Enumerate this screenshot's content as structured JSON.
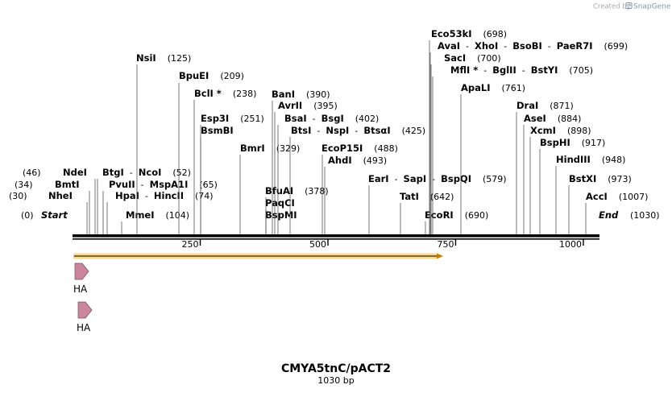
{
  "credit": {
    "prefix": "Created by",
    "brand": "SnapGene"
  },
  "map": {
    "title": "CMYA5tnC/pACT2",
    "length_label": "1030 bp",
    "length": 1030,
    "start_label": "Start",
    "start_pos": "(0)",
    "end_label": "End",
    "end_pos": "(1030)",
    "ticks": [
      250,
      500,
      750,
      1000
    ]
  },
  "sites": [
    {
      "parts": [
        "NsiI"
      ],
      "pos": "(125)",
      "bp": 125
    },
    {
      "parts": [
        "BpuEI"
      ],
      "pos": "(209)",
      "bp": 209
    },
    {
      "parts": [
        "BclI *"
      ],
      "pos": "(238)",
      "bp": 238
    },
    {
      "parts": [
        "Esp3I"
      ],
      "pos": "(251)",
      "bp": 251
    },
    {
      "parts": [
        "BsmBI"
      ],
      "pos": "",
      "bp": 251
    },
    {
      "parts": [
        "BmrI"
      ],
      "pos": "(329)",
      "bp": 329
    },
    {
      "parts": [
        "BanI"
      ],
      "pos": "(390)",
      "bp": 390
    },
    {
      "parts": [
        "AvrII"
      ],
      "pos": "(395)",
      "bp": 395
    },
    {
      "parts": [
        "BsaI",
        "BsgI"
      ],
      "pos": "(402)",
      "bp": 402
    },
    {
      "parts": [
        "BtsI",
        "NspI",
        "BtsαI"
      ],
      "pos": "(425)",
      "bp": 425
    },
    {
      "parts": [
        "EcoP15I"
      ],
      "pos": "(488)",
      "bp": 488
    },
    {
      "parts": [
        "AhdI"
      ],
      "pos": "(493)",
      "bp": 493
    },
    {
      "parts": [
        "BfuAI"
      ],
      "pos": "(378)",
      "bp": 378
    },
    {
      "parts": [
        "PaqCI"
      ],
      "pos": "",
      "bp": 378
    },
    {
      "parts": [
        "BspMI"
      ],
      "pos": "",
      "bp": 378
    },
    {
      "parts": [
        "NdeI"
      ],
      "pos": "(46)",
      "bp": 46
    },
    {
      "parts": [
        "BmtI"
      ],
      "pos": "(34)",
      "bp": 34
    },
    {
      "parts": [
        "NheI"
      ],
      "pos": "(30)",
      "bp": 30
    },
    {
      "parts": [
        "BtgI",
        "NcoI"
      ],
      "pos": "(52)",
      "bp": 52
    },
    {
      "parts": [
        "PvuII",
        "MspA1I"
      ],
      "pos": "(65)",
      "bp": 65
    },
    {
      "parts": [
        "HpaI",
        "HincII"
      ],
      "pos": "(74)",
      "bp": 74
    },
    {
      "parts": [
        "MmeI"
      ],
      "pos": "(104)",
      "bp": 104
    },
    {
      "parts": [
        "EarI",
        "SapI",
        "BspQI"
      ],
      "pos": "(579)",
      "bp": 579
    },
    {
      "parts": [
        "TatI"
      ],
      "pos": "(642)",
      "bp": 642
    },
    {
      "parts": [
        "EcoRI"
      ],
      "pos": "(690)",
      "bp": 690
    },
    {
      "parts": [
        "Eco53kI"
      ],
      "pos": "(698)",
      "bp": 698
    },
    {
      "parts": [
        "AvaI",
        "XhoI",
        "BsoBI",
        "PaeR7I"
      ],
      "pos": "(699)",
      "bp": 699
    },
    {
      "parts": [
        "SacI"
      ],
      "pos": "(700)",
      "bp": 700
    },
    {
      "parts": [
        "MflI *",
        "BglII",
        "BstYI"
      ],
      "pos": "(705)",
      "bp": 705
    },
    {
      "parts": [
        "ApaLI"
      ],
      "pos": "(761)",
      "bp": 761
    },
    {
      "parts": [
        "DraI"
      ],
      "pos": "(871)",
      "bp": 871
    },
    {
      "parts": [
        "AseI"
      ],
      "pos": "(884)",
      "bp": 884
    },
    {
      "parts": [
        "XcmI"
      ],
      "pos": "(898)",
      "bp": 898
    },
    {
      "parts": [
        "BspHI"
      ],
      "pos": "(917)",
      "bp": 917
    },
    {
      "parts": [
        "HindIII"
      ],
      "pos": "(948)",
      "bp": 948
    },
    {
      "parts": [
        "BstXI"
      ],
      "pos": "(973)",
      "bp": 973
    },
    {
      "parts": [
        "AccI"
      ],
      "pos": "(1007)",
      "bp": 1007
    }
  ],
  "features": [
    {
      "name": "orf",
      "start": 1,
      "end": 723,
      "color": "#f2b731"
    },
    {
      "name": "HA",
      "label": "HA",
      "color": "#c9869c"
    },
    {
      "name": "HA",
      "label": "HA",
      "color": "#c9869c"
    }
  ]
}
